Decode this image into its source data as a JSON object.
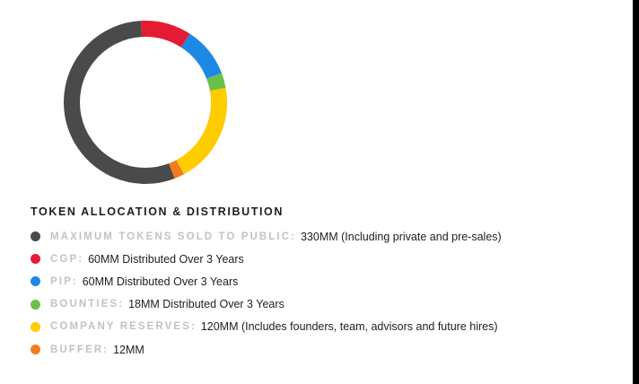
{
  "chart_data": {
    "type": "pie",
    "donut": true,
    "title": "TOKEN ALLOCATION & DISTRIBUTION",
    "legend": "below",
    "total": 600,
    "unit": "MM",
    "series": [
      {
        "name": "MAXIMUM TOKENS SOLD TO PUBLIC",
        "value": 330,
        "color": "#4a4a4a",
        "description": "330MM (Including private and pre-sales)"
      },
      {
        "name": "CGP",
        "value": 60,
        "color": "#e41b33",
        "description": "60MM Distributed Over 3 Years"
      },
      {
        "name": "PIP",
        "value": 60,
        "color": "#1e88e5",
        "description": "60MM Distributed Over 3 Years"
      },
      {
        "name": "BOUNTIES",
        "value": 18,
        "color": "#6cc04a",
        "description": "18MM Distributed Over 3 Years"
      },
      {
        "name": "COMPANY RESERVES",
        "value": 120,
        "color": "#ffcc00",
        "description": "120MM (Includes founders, team, advisors and future hires)"
      },
      {
        "name": "BUFFER",
        "value": 12,
        "color": "#ef7d22",
        "description": "12MM"
      }
    ]
  }
}
